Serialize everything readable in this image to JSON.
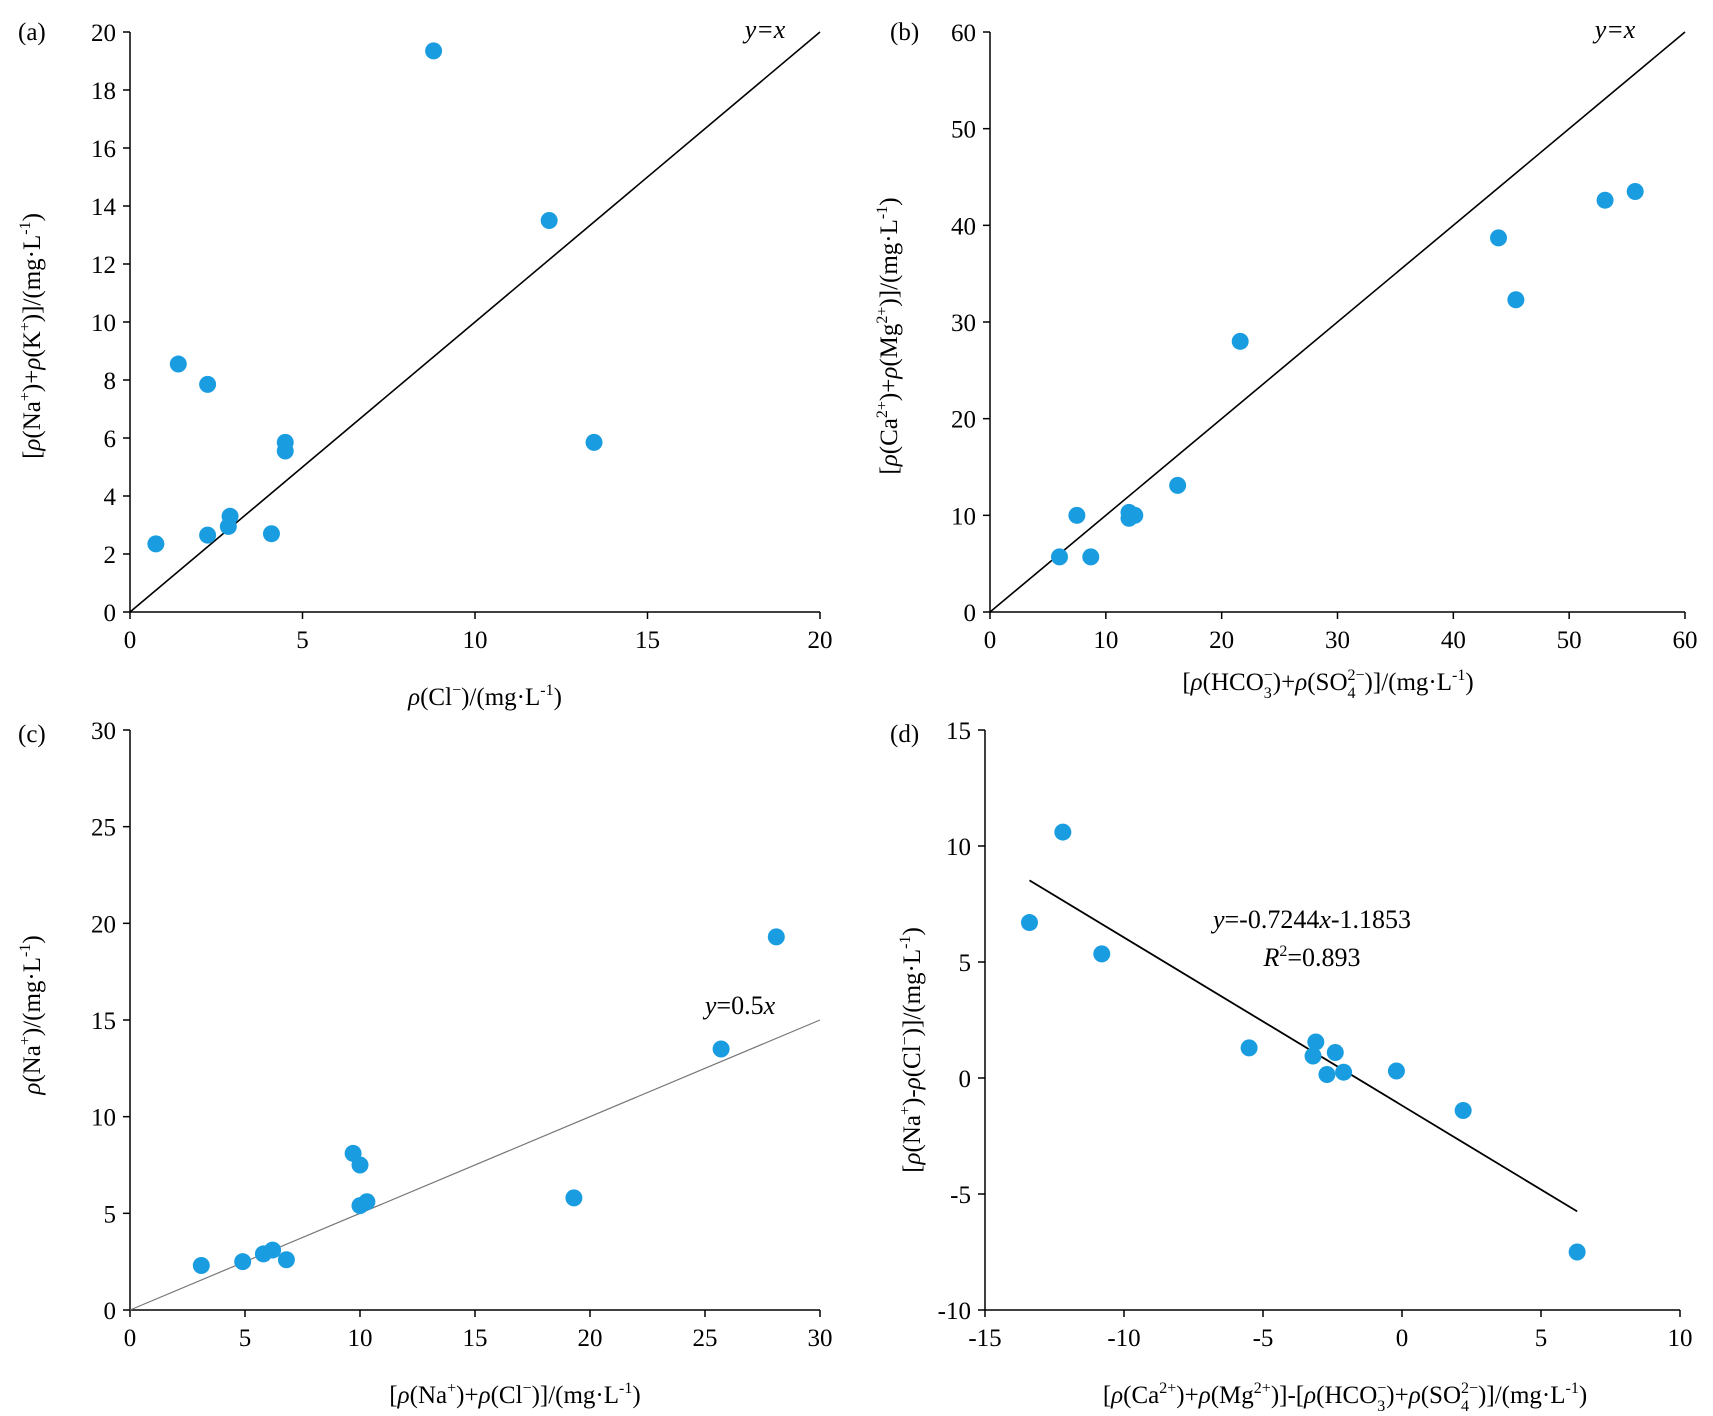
{
  "colors": {
    "points": "#1a9de0",
    "axes": "#000000",
    "ref_line_c": "#777777"
  },
  "chart_data": [
    {
      "id": "a",
      "type": "scatter",
      "panel_label": "(a)",
      "xlabel": "ρ(Cl⁻)/(mg·L⁻¹)",
      "ylabel": "[ρ(Na⁺)+ρ(K⁺)]/(mg·L⁻¹)",
      "xlim": [
        0,
        20
      ],
      "ylim": [
        0,
        20
      ],
      "x_ticks": [
        0,
        5,
        10,
        15,
        20
      ],
      "y_ticks": [
        0,
        2,
        4,
        6,
        8,
        10,
        12,
        14,
        16,
        18,
        20
      ],
      "grid": false,
      "points": [
        [
          0.75,
          2.35
        ],
        [
          1.4,
          8.55
        ],
        [
          2.25,
          7.85
        ],
        [
          2.25,
          2.65
        ],
        [
          2.85,
          2.95
        ],
        [
          2.9,
          3.3
        ],
        [
          4.1,
          2.7
        ],
        [
          4.5,
          5.85
        ],
        [
          4.5,
          5.55
        ],
        [
          8.8,
          19.35
        ],
        [
          12.15,
          13.5
        ],
        [
          13.45,
          5.85
        ]
      ],
      "line": {
        "label": "y=x",
        "from": [
          0,
          0
        ],
        "to": [
          20,
          20
        ]
      }
    },
    {
      "id": "b",
      "type": "scatter",
      "panel_label": "(b)",
      "xlabel": "[ρ(HCO₃⁻)+ρ(SO₄²⁻)]/(mg·L⁻¹)",
      "ylabel": "[ρ(Ca²⁺)+ρ(Mg²⁺)]/(mg·L⁻¹)",
      "xlim": [
        0,
        60
      ],
      "ylim": [
        0,
        60
      ],
      "x_ticks": [
        0,
        10,
        20,
        30,
        40,
        50,
        60
      ],
      "y_ticks": [
        0,
        10,
        20,
        30,
        40,
        50,
        60
      ],
      "grid": false,
      "points": [
        [
          6.0,
          5.7
        ],
        [
          7.5,
          10.0
        ],
        [
          8.7,
          5.7
        ],
        [
          12.0,
          10.3
        ],
        [
          12.0,
          9.7
        ],
        [
          12.5,
          10.0
        ],
        [
          16.2,
          13.1
        ],
        [
          21.6,
          28.0
        ],
        [
          43.9,
          38.7
        ],
        [
          45.4,
          32.3
        ],
        [
          53.1,
          42.6
        ],
        [
          55.7,
          43.5
        ]
      ],
      "line": {
        "label": "y=x",
        "from": [
          0,
          0
        ],
        "to": [
          60,
          60
        ]
      }
    },
    {
      "id": "c",
      "type": "scatter",
      "panel_label": "(c)",
      "xlabel": "[ρ(Na⁺)+ρ(Cl⁻)]/(mg·L⁻¹)",
      "ylabel": "ρ(Na⁺)/(mg·L⁻¹)",
      "xlim": [
        0,
        30
      ],
      "ylim": [
        0,
        30
      ],
      "x_ticks": [
        0,
        5,
        10,
        15,
        20,
        25,
        30
      ],
      "y_ticks": [
        0,
        5,
        10,
        15,
        20,
        25,
        30
      ],
      "grid": false,
      "points": [
        [
          3.1,
          2.3
        ],
        [
          4.9,
          2.5
        ],
        [
          5.8,
          2.9
        ],
        [
          6.2,
          3.1
        ],
        [
          6.8,
          2.6
        ],
        [
          9.7,
          8.1
        ],
        [
          10.0,
          7.5
        ],
        [
          10.0,
          5.4
        ],
        [
          10.3,
          5.6
        ],
        [
          19.3,
          5.8
        ],
        [
          25.7,
          13.5
        ],
        [
          28.1,
          19.3
        ]
      ],
      "line": {
        "label": "y=0.5x",
        "from": [
          0,
          0
        ],
        "to": [
          30,
          15
        ]
      }
    },
    {
      "id": "d",
      "type": "scatter",
      "panel_label": "(d)",
      "xlabel": "[ρ(Ca²⁺)+ρ(Mg²⁺)]-[ρ(HCO₃⁻)+ρ(SO₄²⁻)]/(mg·L⁻¹)",
      "ylabel": "[ρ(Na⁺)-ρ(Cl⁻)]/(mg·L⁻¹)",
      "xlim": [
        -15,
        10
      ],
      "ylim": [
        -10,
        15
      ],
      "x_ticks": [
        -15,
        -10,
        -5,
        0,
        5,
        10
      ],
      "y_ticks": [
        -10,
        -5,
        0,
        5,
        10,
        15
      ],
      "grid": false,
      "points": [
        [
          -13.4,
          6.7
        ],
        [
          -12.2,
          10.6
        ],
        [
          -10.8,
          5.35
        ],
        [
          -5.5,
          1.3
        ],
        [
          -3.2,
          0.95
        ],
        [
          -3.1,
          1.55
        ],
        [
          -2.7,
          0.15
        ],
        [
          -2.4,
          1.1
        ],
        [
          -2.1,
          0.25
        ],
        [
          -0.2,
          0.3
        ],
        [
          2.2,
          -1.4
        ],
        [
          6.3,
          -7.5
        ]
      ],
      "line": {
        "label": "y=-0.7244x-1.1853",
        "from": [
          -13.4,
          8.52
        ],
        "to": [
          6.3,
          -5.75
        ]
      },
      "annotation": {
        "equation": "y=-0.7244x-1.1853",
        "r2": "R²=0.893"
      }
    }
  ]
}
